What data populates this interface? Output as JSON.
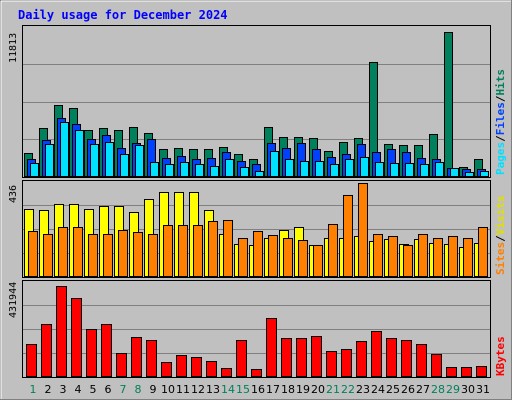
{
  "title": "Daily usage for December 2024",
  "colors": {
    "background": "#c0c0c0",
    "hits": "#00805c",
    "files": "#0040ff",
    "pages": "#00e0ff",
    "visits": "#ffff00",
    "sites": "#ff8000",
    "kbytes": "#ff0000",
    "weekend": "#00805c",
    "weekday": "#000000"
  },
  "legend_top": {
    "hits": "Hits",
    "files": "Files",
    "pages": "Pages",
    "sep": "/"
  },
  "legend_mid": {
    "visits": "Visits",
    "sites": "Sites",
    "sep": "/"
  },
  "legend_bottom": {
    "kbytes": "KBytes"
  },
  "chart_data": [
    {
      "type": "bar",
      "panel": "hits-files-pages",
      "ymax_label": "11813",
      "ylim": [
        0,
        11813
      ],
      "categories": [
        "1",
        "2",
        "3",
        "4",
        "5",
        "6",
        "7",
        "8",
        "9",
        "10",
        "11",
        "12",
        "13",
        "14",
        "15",
        "16",
        "17",
        "18",
        "19",
        "20",
        "21",
        "22",
        "23",
        "24",
        "25",
        "26",
        "27",
        "28",
        "29",
        "30",
        "31"
      ],
      "weekend_days": [
        "1",
        "7",
        "8",
        "14",
        "15",
        "21",
        "22",
        "28",
        "29"
      ],
      "series": [
        {
          "name": "Hits",
          "values": [
            1900,
            3900,
            5700,
            5500,
            3700,
            3900,
            3700,
            4000,
            3500,
            2200,
            2300,
            2200,
            2200,
            2400,
            1800,
            1400,
            4000,
            3200,
            3200,
            3100,
            2100,
            2800,
            3100,
            9100,
            2600,
            2500,
            2500,
            3400,
            11500,
            800,
            1400
          ]
        },
        {
          "name": "Files",
          "values": [
            1400,
            2900,
            4700,
            4200,
            3000,
            3300,
            2300,
            2700,
            3000,
            1500,
            1700,
            1400,
            1500,
            2000,
            1300,
            1000,
            2700,
            2300,
            2700,
            2200,
            1600,
            1800,
            2600,
            2000,
            2200,
            2000,
            1500,
            1400,
            700,
            600,
            600
          ]
        },
        {
          "name": "Pages",
          "values": [
            1100,
            2600,
            4400,
            3700,
            2600,
            2800,
            1800,
            2500,
            1200,
            1000,
            1200,
            1000,
            900,
            1400,
            800,
            500,
            2100,
            1400,
            1300,
            1300,
            1000,
            1400,
            1600,
            1200,
            1100,
            1100,
            1000,
            1200,
            700,
            400,
            500
          ]
        }
      ]
    },
    {
      "type": "bar",
      "panel": "visits-sites",
      "ymax_label": "436",
      "ylim": [
        0,
        436
      ],
      "series": [
        {
          "name": "Visits",
          "values": [
            315,
            312,
            338,
            338,
            315,
            330,
            330,
            300,
            360,
            395,
            392,
            395,
            310,
            200,
            155,
            150,
            180,
            220,
            230,
            150,
            180,
            180,
            190,
            165,
            175,
            155,
            175,
            160,
            155,
            140,
            160
          ]
        },
        {
          "name": "Sites",
          "values": [
            214,
            200,
            230,
            230,
            200,
            200,
            220,
            210,
            200,
            241,
            241,
            241,
            260,
            265,
            180,
            215,
            197,
            180,
            171,
            150,
            245,
            382,
            438,
            200,
            190,
            150,
            200,
            180,
            190,
            180,
            230
          ]
        }
      ]
    },
    {
      "type": "bar",
      "panel": "kbytes",
      "ymax_label": "431944",
      "ylim": [
        0,
        431944
      ],
      "series": [
        {
          "name": "KBytes",
          "values": [
            150000,
            245000,
            420000,
            365000,
            220000,
            245000,
            110000,
            185000,
            170000,
            70000,
            100000,
            90000,
            75000,
            40000,
            170000,
            35000,
            270000,
            180000,
            180000,
            190000,
            120000,
            130000,
            165000,
            210000,
            180000,
            170000,
            150000,
            105000,
            45000,
            45000,
            50000
          ]
        }
      ]
    }
  ]
}
